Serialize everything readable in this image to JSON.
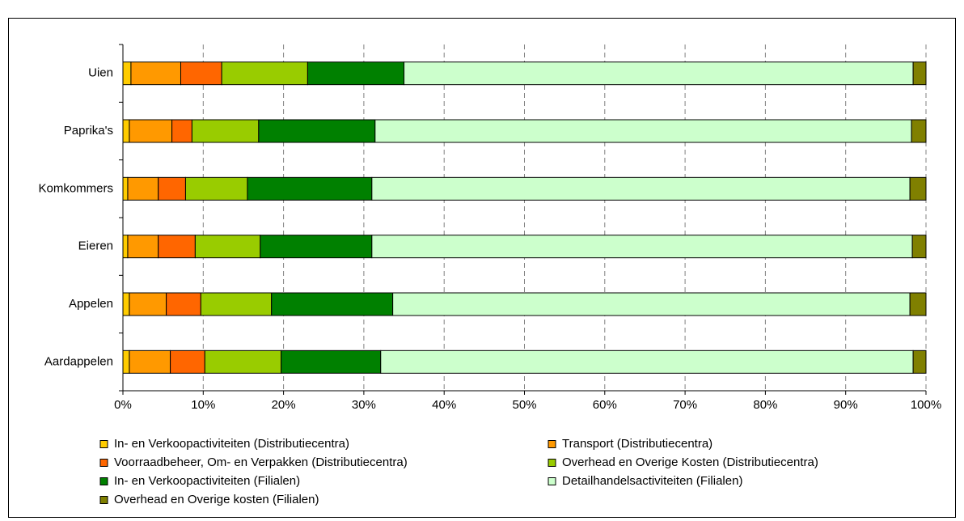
{
  "chart_data": {
    "type": "stacked-bar-horizontal",
    "categories": [
      "Uien",
      "Paprika's",
      "Komkommers",
      "Eieren",
      "Appelen",
      "Aardappelen"
    ],
    "series": [
      {
        "name": "In- en Verkoopactiviteiten (Distributiecentra)",
        "color": "#ffcc00",
        "values": [
          1.0,
          0.8,
          0.6,
          0.6,
          0.8,
          0.8
        ]
      },
      {
        "name": "Transport (Distributiecentra)",
        "color": "#ff9900",
        "values": [
          6.2,
          5.3,
          3.8,
          3.8,
          4.6,
          5.1
        ]
      },
      {
        "name": "Voorraadbeheer, Om- en Verpakken (Distributiecentra)",
        "color": "#ff6600",
        "values": [
          5.1,
          2.5,
          3.4,
          4.6,
          4.3,
          4.3
        ]
      },
      {
        "name": "Overhead en Overige Kosten (Distributiecentra)",
        "color": "#99cc00",
        "values": [
          10.7,
          8.3,
          7.7,
          8.1,
          8.8,
          9.5
        ]
      },
      {
        "name": "In- en Verkoopactiviteiten (Filialen)",
        "color": "#008000",
        "values": [
          12.0,
          14.5,
          15.5,
          13.9,
          15.1,
          12.4
        ]
      },
      {
        "name": "Detailhandelsactiviteiten (Filialen)",
        "color": "#ccffcc",
        "values": [
          63.4,
          66.8,
          67.0,
          67.3,
          64.4,
          66.3
        ]
      },
      {
        "name": "Overhead en Overige kosten (Filialen)",
        "color": "#808000",
        "values": [
          1.6,
          1.8,
          2.0,
          1.7,
          2.0,
          1.6
        ]
      }
    ],
    "xlim": [
      0,
      100
    ],
    "xticks": [
      {
        "value": 0,
        "label": "0%"
      },
      {
        "value": 10,
        "label": "10%"
      },
      {
        "value": 20,
        "label": "20%"
      },
      {
        "value": 30,
        "label": "30%"
      },
      {
        "value": 40,
        "label": "40%"
      },
      {
        "value": 50,
        "label": "50%"
      },
      {
        "value": 60,
        "label": "60%"
      },
      {
        "value": 70,
        "label": "70%"
      },
      {
        "value": 80,
        "label": "80%"
      },
      {
        "value": 90,
        "label": "90%"
      },
      {
        "value": 100,
        "label": "100%"
      }
    ],
    "grid": true,
    "legend": "bottom"
  }
}
